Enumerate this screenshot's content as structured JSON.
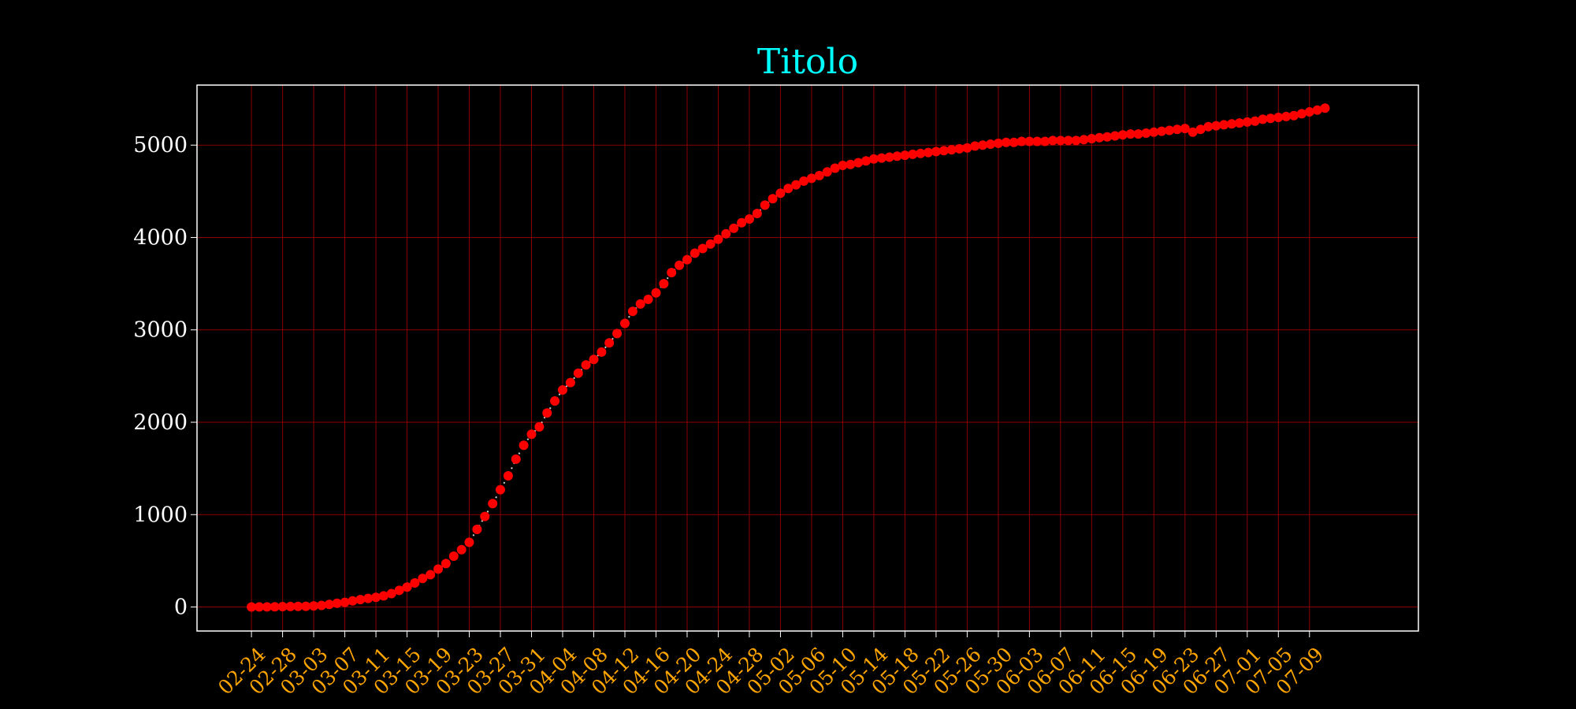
{
  "colors": {
    "background": "#000000",
    "title": "#00ffff",
    "x_tick_labels": "#ffa500",
    "y_tick_labels": "#ffffff",
    "grid": "#8b0000",
    "frame": "#ffffff",
    "marker": "#ff0000",
    "line": "#d0d0d0"
  },
  "chart_data": {
    "type": "line",
    "title": "Titolo",
    "xlabel": "",
    "ylabel": "",
    "x_start": "2020-02-24",
    "x_end": "2020-07-12",
    "xlim": [
      "2020-02-17",
      "2020-07-23"
    ],
    "ylim": [
      -260,
      5650
    ],
    "grid": true,
    "legend": "none",
    "x_tick_labels": [
      "02-24",
      "02-28",
      "03-03",
      "03-07",
      "03-11",
      "03-15",
      "03-19",
      "03-23",
      "03-27",
      "03-31",
      "04-04",
      "04-08",
      "04-12",
      "04-16",
      "04-20",
      "04-24",
      "04-28",
      "05-02",
      "05-06",
      "05-10",
      "05-14",
      "05-18",
      "05-22",
      "05-26",
      "05-30",
      "06-03",
      "06-07",
      "06-11",
      "06-15",
      "06-19",
      "06-23",
      "06-27",
      "07-01",
      "07-05",
      "07-09"
    ],
    "y_tick_labels": [
      "0",
      "1000",
      "2000",
      "3000",
      "4000",
      "5000"
    ],
    "y_ticks": [
      0,
      1000,
      2000,
      3000,
      4000,
      5000
    ],
    "x_tick_dates": [
      "2020-02-24",
      "2020-02-28",
      "2020-03-03",
      "2020-03-07",
      "2020-03-11",
      "2020-03-15",
      "2020-03-19",
      "2020-03-23",
      "2020-03-27",
      "2020-03-31",
      "2020-04-04",
      "2020-04-08",
      "2020-04-12",
      "2020-04-16",
      "2020-04-20",
      "2020-04-24",
      "2020-04-28",
      "2020-05-02",
      "2020-05-06",
      "2020-05-10",
      "2020-05-14",
      "2020-05-18",
      "2020-05-22",
      "2020-05-26",
      "2020-05-30",
      "2020-06-03",
      "2020-06-07",
      "2020-06-11",
      "2020-06-15",
      "2020-06-19",
      "2020-06-23",
      "2020-06-27",
      "2020-07-01",
      "2020-07-05",
      "2020-07-09"
    ],
    "series": [
      {
        "values": [
          0,
          1,
          1,
          3,
          4,
          5,
          6,
          8,
          12,
          17,
          28,
          40,
          50,
          67,
          80,
          93,
          105,
          120,
          145,
          180,
          215,
          260,
          310,
          350,
          410,
          470,
          550,
          620,
          700,
          840,
          980,
          1120,
          1270,
          1420,
          1600,
          1750,
          1870,
          1950,
          2100,
          2230,
          2350,
          2430,
          2530,
          2620,
          2680,
          2760,
          2860,
          2960,
          3070,
          3200,
          3280,
          3330,
          3400,
          3500,
          3620,
          3700,
          3760,
          3830,
          3880,
          3930,
          3980,
          4040,
          4100,
          4160,
          4200,
          4260,
          4350,
          4420,
          4480,
          4530,
          4570,
          4610,
          4640,
          4670,
          4710,
          4750,
          4780,
          4790,
          4810,
          4830,
          4850,
          4860,
          4870,
          4880,
          4890,
          4900,
          4910,
          4920,
          4930,
          4940,
          4950,
          4960,
          4970,
          4990,
          5000,
          5010,
          5020,
          5030,
          5030,
          5040,
          5040,
          5040,
          5040,
          5050,
          5050,
          5050,
          5050,
          5060,
          5070,
          5080,
          5090,
          5100,
          5110,
          5120,
          5120,
          5130,
          5140,
          5150,
          5160,
          5170,
          5180,
          5140,
          5170,
          5200,
          5210,
          5220,
          5230,
          5240,
          5250,
          5260,
          5280,
          5290,
          5300,
          5310,
          5320,
          5340,
          5360,
          5380,
          5400
        ]
      }
    ]
  }
}
